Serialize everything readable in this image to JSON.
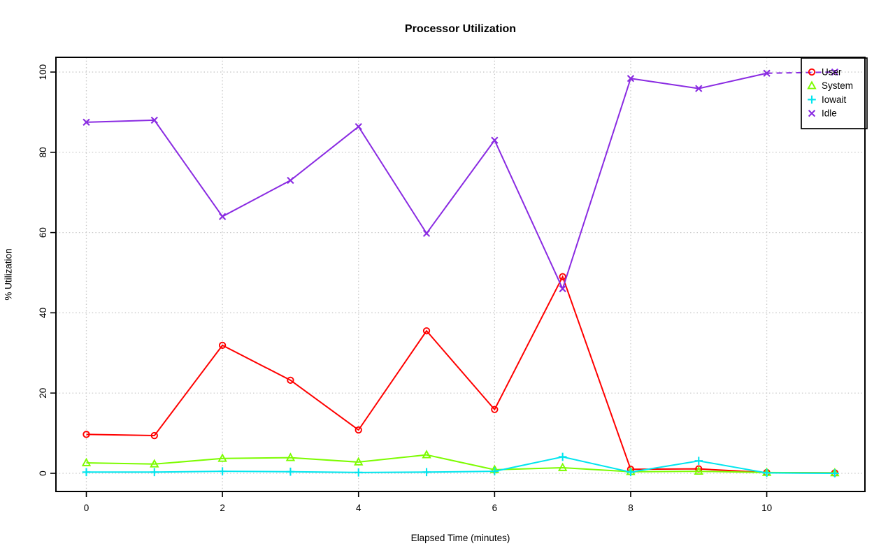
{
  "figure": {
    "background": "#ffffff",
    "frame_color": "#000000",
    "grid_color": "#c8c8c8",
    "text_color": "#000000"
  },
  "chart_data": {
    "type": "line",
    "title": "Processor Utilization",
    "xlabel": "Elapsed Time (minutes)",
    "ylabel": "% Utilization",
    "x": [
      0,
      1,
      2,
      3,
      4,
      5,
      6,
      7,
      8,
      9,
      10,
      11
    ],
    "xlim": [
      0,
      11
    ],
    "ylim": [
      0,
      100
    ],
    "x_ticks": [
      0,
      2,
      4,
      6,
      8,
      10
    ],
    "y_ticks": [
      0,
      20,
      40,
      60,
      80,
      100
    ],
    "grid": true,
    "grid_style": "dotted",
    "legend_position": "top-right",
    "legend_transparent": true,
    "series": [
      {
        "name": "User",
        "color": "#ff0000",
        "marker": "circle",
        "values": [
          9.7,
          9.4,
          31.9,
          23.2,
          10.8,
          35.5,
          15.9,
          49.0,
          1.0,
          1.1,
          0.2,
          0.1
        ]
      },
      {
        "name": "System",
        "color": "#7cfc00",
        "marker": "triangle",
        "values": [
          2.6,
          2.3,
          3.7,
          3.9,
          2.8,
          4.6,
          0.9,
          1.4,
          0.4,
          0.5,
          0.2,
          0.1
        ]
      },
      {
        "name": "Iowait",
        "color": "#00e5ee",
        "marker": "plus",
        "values": [
          0.3,
          0.3,
          0.5,
          0.4,
          0.2,
          0.3,
          0.5,
          4.1,
          0.3,
          3.1,
          0.1,
          0.0
        ]
      },
      {
        "name": "Idle",
        "color": "#8a2be2",
        "marker": "x",
        "values": [
          87.5,
          88.0,
          64.0,
          73.0,
          86.4,
          59.8,
          83.0,
          46.0,
          98.4,
          95.9,
          99.7,
          100.0
        ],
        "dashed_tail_from_index": 10
      }
    ]
  }
}
